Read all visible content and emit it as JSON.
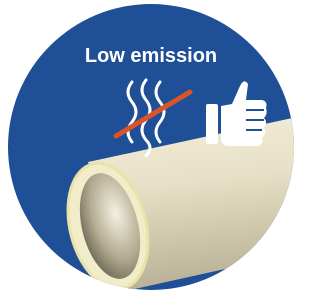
{
  "badge": {
    "label": "Low emission"
  }
}
